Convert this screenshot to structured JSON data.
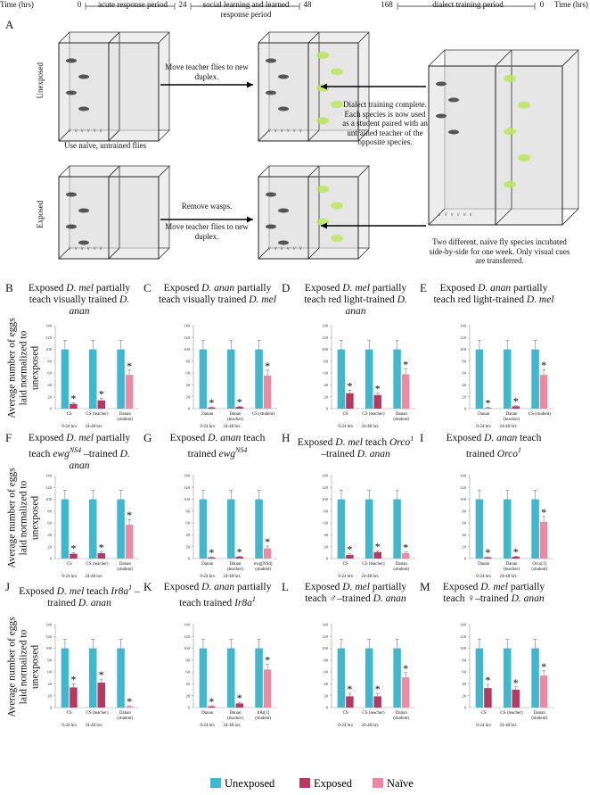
{
  "diagram": {
    "panel": "A",
    "timeline": {
      "left_label": "Time (hrs)",
      "right_label": "Time (hrs)",
      "ticks": [
        "0",
        "24",
        "48",
        "168",
        "0"
      ],
      "periods": [
        "acute response period",
        "social learning and learned response period",
        "dialect training period"
      ]
    },
    "row_labels": [
      "Unexposed",
      "Exposed"
    ],
    "notes": [
      "Move teacher flies to new duplex.",
      "Use naïve, untrained flies",
      "Remove wasps.",
      "Move teacher flies to new duplex.",
      "Dialect training complete. Each species is now used as a student paired with an untrained teacher of the opposite species.",
      "Two different, naïve fly species incubated side-by-side for one week. Only visual cues are transferred."
    ]
  },
  "chart_data": [
    {
      "type": "bar",
      "panel": "B",
      "ylabel": "Average number of eggs laid normalized to unexposed",
      "title": [
        {
          "text": "Exposed "
        },
        {
          "text": "D. mel",
          "style": "i"
        },
        {
          "text": " partially teach visually trained "
        },
        {
          "text": "D. anan",
          "style": "i"
        }
      ],
      "categories": [
        "CS",
        "CS (teacher)",
        "Danan (student)"
      ],
      "group_labels": [
        "0-24 hrs",
        "24-48 hrs"
      ],
      "series": [
        {
          "name": "Unexposed",
          "color": "#41b6cf",
          "values": [
            100,
            100,
            100
          ],
          "errors": [
            15,
            15,
            15
          ]
        },
        {
          "name": "Exposed",
          "color": "#b8395f",
          "values": [
            8,
            14,
            null
          ],
          "errors": [
            2,
            3,
            null
          ]
        },
        {
          "name": "Naïve",
          "color": "#eb8ba1",
          "values": [
            null,
            null,
            57
          ],
          "errors": [
            null,
            null,
            8
          ]
        }
      ],
      "significance": "*",
      "ylim": [
        0,
        140
      ],
      "yticks": [
        0,
        20,
        40,
        60,
        80,
        100,
        120,
        140
      ],
      "grid": false
    },
    {
      "type": "bar",
      "panel": "C",
      "title": [
        {
          "text": "Exposed "
        },
        {
          "text": "D. anan",
          "style": "i"
        },
        {
          "text": " partially teach visually trained "
        },
        {
          "text": "D. mel",
          "style": "i"
        }
      ],
      "categories": [
        "Danan",
        "Danan (teacher)",
        "CS (student)"
      ],
      "group_labels": [
        "0-24 hrs",
        "24-48 hrs"
      ],
      "series": [
        {
          "name": "Unexposed",
          "color": "#41b6cf",
          "values": [
            100,
            100,
            100
          ],
          "errors": [
            15,
            15,
            15
          ]
        },
        {
          "name": "Exposed",
          "color": "#b8395f",
          "values": [
            2,
            3,
            null
          ],
          "errors": [
            1,
            1,
            null
          ]
        },
        {
          "name": "Naïve",
          "color": "#eb8ba1",
          "values": [
            null,
            null,
            56
          ],
          "errors": [
            null,
            null,
            9
          ]
        }
      ],
      "significance": "*",
      "ylim": [
        0,
        140
      ],
      "yticks": [
        0,
        20,
        40,
        60,
        80,
        100,
        120,
        140
      ],
      "grid": false
    },
    {
      "type": "bar",
      "panel": "D",
      "title": [
        {
          "text": "Exposed "
        },
        {
          "text": "D. mel",
          "style": "i"
        },
        {
          "text": " partially teach red light-trained "
        },
        {
          "text": "D. anan",
          "style": "i"
        }
      ],
      "categories": [
        "CS",
        "CS (teacher)",
        "Danan (student)"
      ],
      "group_labels": [
        "0-24 hrs",
        "24-48 hrs"
      ],
      "series": [
        {
          "name": "Unexposed",
          "color": "#41b6cf",
          "values": [
            100,
            100,
            100
          ],
          "errors": [
            15,
            15,
            15
          ]
        },
        {
          "name": "Exposed",
          "color": "#b8395f",
          "values": [
            26,
            23,
            null
          ],
          "errors": [
            5,
            3,
            null
          ]
        },
        {
          "name": "Naïve",
          "color": "#eb8ba1",
          "values": [
            null,
            null,
            58
          ],
          "errors": [
            null,
            null,
            9
          ]
        }
      ],
      "significance": "*",
      "ylim": [
        0,
        140
      ],
      "yticks": [
        0,
        20,
        40,
        60,
        80,
        100,
        120,
        140
      ],
      "grid": false
    },
    {
      "type": "bar",
      "panel": "E",
      "title": [
        {
          "text": "Exposed "
        },
        {
          "text": "D. anan",
          "style": "i"
        },
        {
          "text": " partially teach red light-trained "
        },
        {
          "text": "D. mel",
          "style": "i"
        }
      ],
      "categories": [
        "Danan",
        "Danan (teacher)",
        "CS (student)"
      ],
      "group_labels": [
        "0-24 hrs",
        "24-48 hrs"
      ],
      "series": [
        {
          "name": "Unexposed",
          "color": "#41b6cf",
          "values": [
            100,
            100,
            100
          ],
          "errors": [
            15,
            15,
            15
          ]
        },
        {
          "name": "Exposed",
          "color": "#b8395f",
          "values": [
            1,
            4,
            null
          ],
          "errors": [
            1,
            1,
            null
          ]
        },
        {
          "name": "Naïve",
          "color": "#eb8ba1",
          "values": [
            null,
            null,
            57
          ],
          "errors": [
            null,
            null,
            9
          ]
        }
      ],
      "significance": "*",
      "ylim": [
        0,
        140
      ],
      "yticks": [
        0,
        20,
        40,
        60,
        80,
        100,
        120,
        140
      ],
      "grid": false
    },
    {
      "type": "bar",
      "panel": "F",
      "ylabel": "Average number of eggs laid normalized to unexposed",
      "title": [
        {
          "text": "Exposed "
        },
        {
          "text": "D. mel",
          "style": "i"
        },
        {
          "text": " partially teach "
        },
        {
          "text": "ewg",
          "style": "i"
        },
        {
          "text": "NS4",
          "style": "sup"
        },
        {
          "text": " –trained "
        },
        {
          "text": "D. anan",
          "style": "i"
        }
      ],
      "categories": [
        "CS",
        "CS (teacher)",
        "Danan (student)"
      ],
      "group_labels": [
        "0-24 hrs",
        "24-48 hrs"
      ],
      "series": [
        {
          "name": "Unexposed",
          "color": "#41b6cf",
          "values": [
            100,
            100,
            100
          ],
          "errors": [
            15,
            15,
            15
          ]
        },
        {
          "name": "Exposed",
          "color": "#b8395f",
          "values": [
            8,
            9,
            null
          ],
          "errors": [
            2,
            2,
            null
          ]
        },
        {
          "name": "Naïve",
          "color": "#eb8ba1",
          "values": [
            null,
            null,
            57
          ],
          "errors": [
            null,
            null,
            9
          ]
        }
      ],
      "significance": "*",
      "ylim": [
        0,
        140
      ],
      "yticks": [
        0,
        20,
        40,
        60,
        80,
        100,
        120,
        140
      ],
      "grid": false
    },
    {
      "type": "bar",
      "panel": "G",
      "title": [
        {
          "text": "Exposed "
        },
        {
          "text": "D. anan",
          "style": "i"
        },
        {
          "text": " teach trained "
        },
        {
          "text": "ewg",
          "style": "i"
        },
        {
          "text": "NS4",
          "style": "sup"
        }
      ],
      "categories": [
        "Danan",
        "Danan (teacher)",
        "ewg[NS4] (student)"
      ],
      "group_labels": [
        "0-24 hrs",
        "24-48 hrs"
      ],
      "series": [
        {
          "name": "Unexposed",
          "color": "#41b6cf",
          "values": [
            100,
            100,
            100
          ],
          "errors": [
            15,
            15,
            15
          ]
        },
        {
          "name": "Exposed",
          "color": "#b8395f",
          "values": [
            2,
            3,
            null
          ],
          "errors": [
            1,
            1,
            null
          ]
        },
        {
          "name": "Naïve",
          "color": "#eb8ba1",
          "values": [
            null,
            null,
            17
          ],
          "errors": [
            null,
            null,
            4
          ]
        }
      ],
      "significance": "*",
      "ylim": [
        0,
        140
      ],
      "yticks": [
        0,
        20,
        40,
        60,
        80,
        100,
        120,
        140
      ],
      "grid": false
    },
    {
      "type": "bar",
      "panel": "H",
      "title": [
        {
          "text": "Exposed "
        },
        {
          "text": "D. mel",
          "style": "i"
        },
        {
          "text": " teach "
        },
        {
          "text": "Orco",
          "style": "i"
        },
        {
          "text": "1",
          "style": "sup"
        },
        {
          "text": " –trained "
        },
        {
          "text": "D. anan",
          "style": "i"
        }
      ],
      "categories": [
        "CS",
        "CS (teacher)",
        "Danan (student)"
      ],
      "group_labels": [
        "0-24 hrs",
        "24-48 hrs"
      ],
      "series": [
        {
          "name": "Unexposed",
          "color": "#41b6cf",
          "values": [
            100,
            100,
            100
          ],
          "errors": [
            15,
            15,
            15
          ]
        },
        {
          "name": "Exposed",
          "color": "#b8395f",
          "values": [
            6,
            11,
            null
          ],
          "errors": [
            2,
            2,
            null
          ]
        },
        {
          "name": "Naïve",
          "color": "#eb8ba1",
          "values": [
            null,
            null,
            9
          ],
          "errors": [
            null,
            null,
            2
          ]
        }
      ],
      "significance": "*",
      "ylim": [
        0,
        140
      ],
      "yticks": [
        0,
        20,
        40,
        60,
        80,
        100,
        120,
        140
      ],
      "grid": false
    },
    {
      "type": "bar",
      "panel": "I",
      "title": [
        {
          "text": "Exposed "
        },
        {
          "text": "D. anan",
          "style": "i"
        },
        {
          "text": " teach trained "
        },
        {
          "text": "Orco",
          "style": "i"
        },
        {
          "text": "1",
          "style": "sup"
        }
      ],
      "categories": [
        "Danan",
        "Danan (teacher)",
        "Orco[1] (student)"
      ],
      "group_labels": [
        "0-24 hrs",
        "24-48 hrs"
      ],
      "series": [
        {
          "name": "Unexposed",
          "color": "#41b6cf",
          "values": [
            100,
            100,
            100
          ],
          "errors": [
            15,
            15,
            15
          ]
        },
        {
          "name": "Exposed",
          "color": "#b8395f",
          "values": [
            2,
            3,
            null
          ],
          "errors": [
            1,
            1,
            null
          ]
        },
        {
          "name": "Naïve",
          "color": "#eb8ba1",
          "values": [
            null,
            null,
            62
          ],
          "errors": [
            null,
            null,
            9
          ]
        }
      ],
      "significance": "*",
      "ylim": [
        0,
        140
      ],
      "yticks": [
        0,
        20,
        40,
        60,
        80,
        100,
        120,
        140
      ],
      "grid": false
    },
    {
      "type": "bar",
      "panel": "J",
      "ylabel": "Average number of eggs laid normalized to unexposed",
      "title": [
        {
          "text": "Exposed "
        },
        {
          "text": "D. mel",
          "style": "i"
        },
        {
          "text": " teach "
        },
        {
          "text": "Ir8a",
          "style": "i"
        },
        {
          "text": "1",
          "style": "sup"
        },
        {
          "text": " –trained "
        },
        {
          "text": "D. anan",
          "style": "i"
        }
      ],
      "categories": [
        "CS",
        "CS (teacher)",
        "Danan (student)"
      ],
      "group_labels": [
        "0-24 hrs",
        "24-48 hrs"
      ],
      "series": [
        {
          "name": "Unexposed",
          "color": "#41b6cf",
          "values": [
            100,
            100,
            100
          ],
          "errors": [
            15,
            15,
            15
          ]
        },
        {
          "name": "Exposed",
          "color": "#b8395f",
          "values": [
            34,
            42,
            null
          ],
          "errors": [
            6,
            6,
            null
          ]
        },
        {
          "name": "Naïve",
          "color": "#eb8ba1",
          "values": [
            null,
            null,
            2
          ],
          "errors": [
            null,
            null,
            1
          ]
        }
      ],
      "significance": "*",
      "ylim": [
        0,
        140
      ],
      "yticks": [
        0,
        20,
        40,
        60,
        80,
        100,
        120,
        140
      ],
      "grid": false
    },
    {
      "type": "bar",
      "panel": "K",
      "title": [
        {
          "text": "Exposed "
        },
        {
          "text": "D. anan",
          "style": "i"
        },
        {
          "text": " partially teach trained "
        },
        {
          "text": "Ir8a",
          "style": "i"
        },
        {
          "text": "1",
          "style": "sup"
        }
      ],
      "categories": [
        "Danan",
        "Danan (teacher)",
        "Ir8a[1] (student)"
      ],
      "group_labels": [
        "0-24 hrs",
        "24-48 hrs"
      ],
      "series": [
        {
          "name": "Unexposed",
          "color": "#41b6cf",
          "values": [
            100,
            100,
            100
          ],
          "errors": [
            15,
            15,
            15
          ]
        },
        {
          "name": "Exposed",
          "color": "#b8395f",
          "values": [
            2,
            7,
            null
          ],
          "errors": [
            1,
            2,
            null
          ]
        },
        {
          "name": "Naïve",
          "color": "#eb8ba1",
          "values": [
            null,
            null,
            64
          ],
          "errors": [
            null,
            null,
            9
          ]
        }
      ],
      "significance": "*",
      "ylim": [
        0,
        140
      ],
      "yticks": [
        0,
        20,
        40,
        60,
        80,
        100,
        120,
        140
      ],
      "grid": false
    },
    {
      "type": "bar",
      "panel": "L",
      "title": [
        {
          "text": "Exposed "
        },
        {
          "text": "D. mel",
          "style": "i"
        },
        {
          "text": " partially teach "
        },
        {
          "text": "♂"
        },
        {
          "text": "–trained "
        },
        {
          "text": "D. anan",
          "style": "i"
        }
      ],
      "categories": [
        "CS",
        "CS (teacher)",
        "Danan (student)"
      ],
      "group_labels": [
        "0-24 hrs",
        "24-48 hrs"
      ],
      "series": [
        {
          "name": "Unexposed",
          "color": "#41b6cf",
          "values": [
            100,
            100,
            100
          ],
          "errors": [
            15,
            15,
            15
          ]
        },
        {
          "name": "Exposed",
          "color": "#b8395f",
          "values": [
            19,
            19,
            null
          ],
          "errors": [
            5,
            5,
            null
          ]
        },
        {
          "name": "Naïve",
          "color": "#eb8ba1",
          "values": [
            null,
            null,
            51
          ],
          "errors": [
            null,
            null,
            8
          ]
        }
      ],
      "significance": "*",
      "ylim": [
        0,
        140
      ],
      "yticks": [
        0,
        20,
        40,
        60,
        80,
        100,
        120,
        140
      ],
      "grid": false
    },
    {
      "type": "bar",
      "panel": "M",
      "title": [
        {
          "text": "Exposed "
        },
        {
          "text": "D. mel",
          "style": "i"
        },
        {
          "text": " partially teach "
        },
        {
          "text": "♀"
        },
        {
          "text": "–trained "
        },
        {
          "text": "D. anan",
          "style": "i"
        }
      ],
      "categories": [
        "CS",
        "CS (teacher)",
        "Danan (student)"
      ],
      "group_labels": [
        "0-24 hrs",
        "24-48 hrs"
      ],
      "series": [
        {
          "name": "Unexposed",
          "color": "#41b6cf",
          "values": [
            100,
            100,
            100
          ],
          "errors": [
            15,
            15,
            15
          ]
        },
        {
          "name": "Exposed",
          "color": "#b8395f",
          "values": [
            33,
            30,
            null
          ],
          "errors": [
            6,
            5,
            null
          ]
        },
        {
          "name": "Naïve",
          "color": "#eb8ba1",
          "values": [
            null,
            null,
            54
          ],
          "errors": [
            null,
            null,
            8
          ]
        }
      ],
      "significance": "*",
      "ylim": [
        0,
        140
      ],
      "yticks": [
        0,
        20,
        40,
        60,
        80,
        100,
        120,
        140
      ],
      "grid": false
    }
  ]
}
